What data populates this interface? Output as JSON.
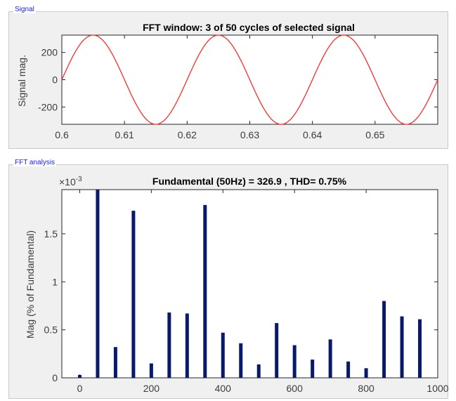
{
  "panels": {
    "signal": {
      "label": "Signal"
    },
    "fft": {
      "label": "FFT analysis"
    }
  },
  "chart_data": [
    {
      "type": "line",
      "title": "FFT window: 3 of 50 cycles of selected signal",
      "ylabel": "Signal mag.",
      "xlabel": "",
      "xlim": [
        0.6,
        0.66
      ],
      "ylim": [
        -326.9,
        326.9
      ],
      "x_ticks": [
        "0.6",
        "0.61",
        "0.62",
        "0.63",
        "0.64",
        "0.65"
      ],
      "x_tick_values": [
        0.6,
        0.61,
        0.62,
        0.63,
        0.64,
        0.65
      ],
      "y_ticks": [
        "-200",
        "0",
        "200"
      ],
      "y_tick_values": [
        -200,
        0,
        200
      ],
      "series": [
        {
          "function": "326.9*sin(2*pi*50*(t-0.6))",
          "amplitude": 326.9,
          "frequency_hz": 50,
          "color": "#ff2a2a"
        }
      ],
      "grid": false
    },
    {
      "type": "bar",
      "title": "Fundamental (50Hz) = 326.9 , THD= 0.75%",
      "ylabel": "Mag (% of Fundamental)",
      "xlabel": "",
      "scale_label": "×10",
      "scale_exponent": "-3",
      "xlim": [
        -50,
        1000
      ],
      "ylim": [
        0,
        0.00196
      ],
      "x_ticks": [
        "0",
        "200",
        "400",
        "600",
        "800",
        "1000"
      ],
      "x_tick_values": [
        0,
        200,
        400,
        600,
        800,
        1000
      ],
      "y_ticks": [
        "0",
        "0.5",
        "1",
        "1.5"
      ],
      "y_tick_values": [
        0,
        0.0005,
        0.001,
        0.0015
      ],
      "x": [
        0,
        50,
        100,
        150,
        200,
        250,
        300,
        350,
        400,
        450,
        500,
        550,
        600,
        650,
        700,
        750,
        800,
        850,
        900,
        950
      ],
      "values": [
        3e-05,
        0.00196,
        0.00032,
        0.00174,
        0.00015,
        0.00068,
        0.00067,
        0.0018,
        0.00047,
        0.00036,
        0.00014,
        0.00057,
        0.00034,
        0.00019,
        0.0004,
        0.00017,
        0.0001,
        0.0008,
        0.00064,
        0.00061
      ],
      "bar_color": "#0a1a6b",
      "grid": false
    }
  ]
}
